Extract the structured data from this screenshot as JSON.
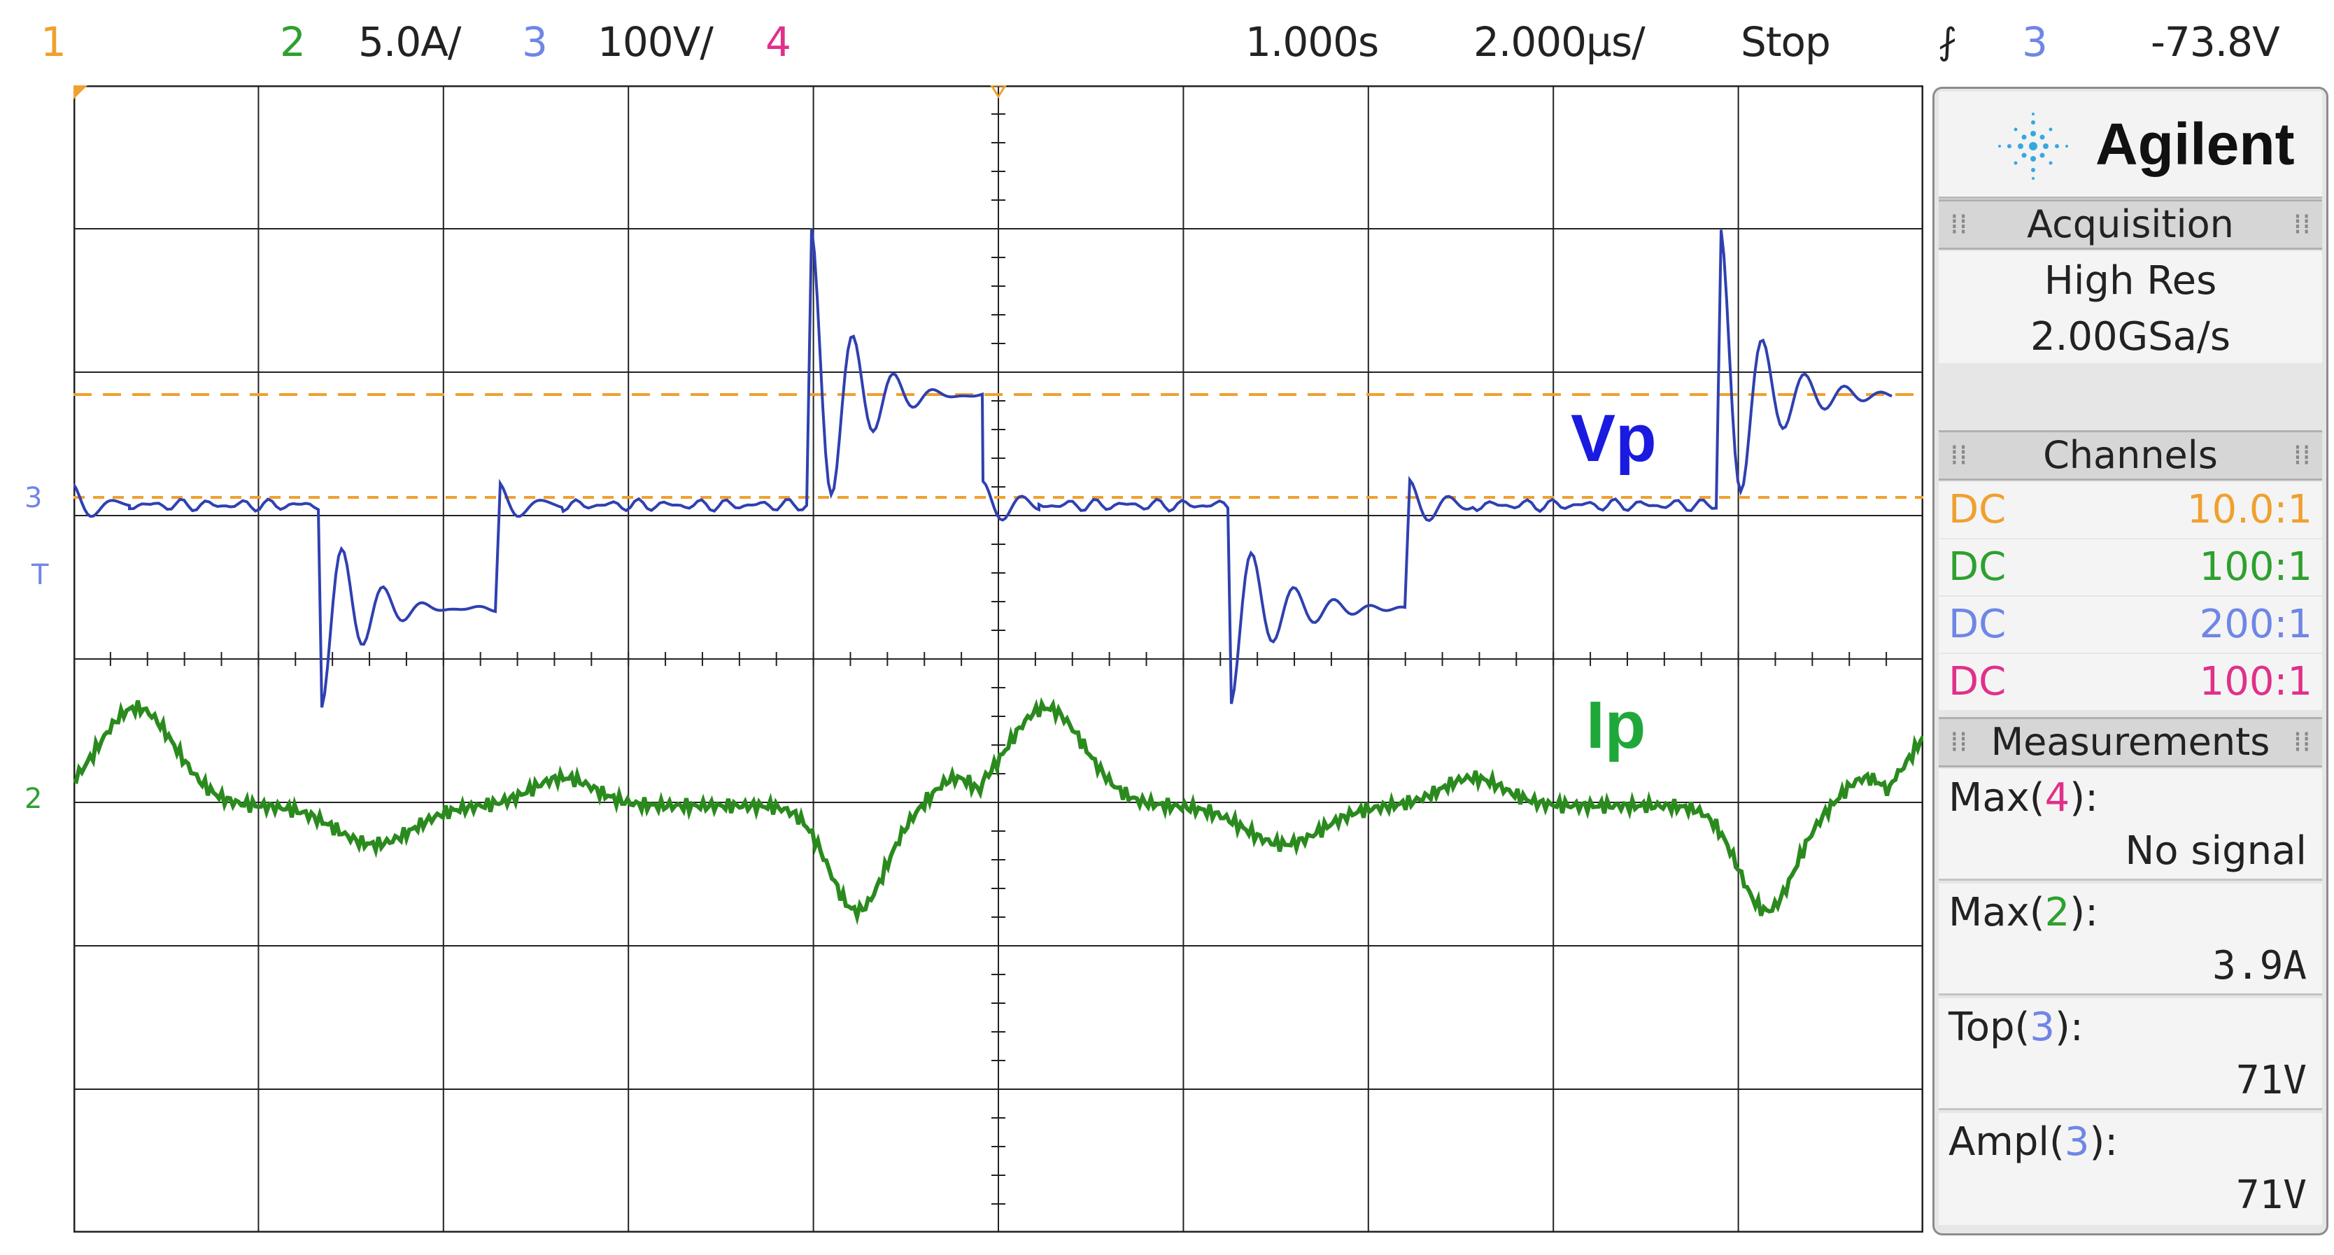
{
  "header": {
    "ch1_num": "1",
    "ch2_num": "2",
    "ch2_scale": "5.0A/",
    "ch3_num": "3",
    "ch3_scale": "100V/",
    "ch4_num": "4",
    "time_delay": "1.000s",
    "time_scale": "2.000µs/",
    "run_state": "Stop",
    "trigger_icon": "⨏",
    "trigger_source": "3",
    "trigger_level": "-73.8V"
  },
  "screen": {
    "markers": {
      "ch3_ground": "3",
      "ch2_ground": "2",
      "trigger_T": "T"
    },
    "trace_labels": {
      "vp": "Vp",
      "ip": "Ip"
    }
  },
  "panel": {
    "brand": "Agilent",
    "acquisition": {
      "title": "Acquisition",
      "mode": "High Res",
      "rate": "2.00GSa/s"
    },
    "channels": {
      "title": "Channels",
      "rows": [
        {
          "coupling": "DC",
          "ratio": "10.0:1",
          "color": "#f0a030"
        },
        {
          "coupling": "DC",
          "ratio": "100:1",
          "color": "#2ea02e"
        },
        {
          "coupling": "DC",
          "ratio": "200:1",
          "color": "#6f86e6"
        },
        {
          "coupling": "DC",
          "ratio": "100:1",
          "color": "#e0308a"
        }
      ]
    },
    "measurements": {
      "title": "Measurements",
      "items": [
        {
          "name": "Max(",
          "ch": "4",
          "close": "):",
          "value": "No signal",
          "ch_color": "#e0308a"
        },
        {
          "name": "Max(",
          "ch": "2",
          "close": "):",
          "value": "3.9A",
          "ch_color": "#2ea02e"
        },
        {
          "name": "Top(",
          "ch": "3",
          "close": "):",
          "value": "71V",
          "ch_color": "#6f86e6"
        },
        {
          "name": "Ampl(",
          "ch": "3",
          "close": "):",
          "value": "71V",
          "ch_color": "#6f86e6"
        }
      ]
    }
  },
  "colors": {
    "ch1": "#f0a030",
    "ch2": "#2ea02e",
    "ch3": "#6f86e6",
    "ch4": "#e0308a",
    "vp_trace": "#2f40b0",
    "ip_trace": "#2a8a1e",
    "vp_label": "#1a1ae0",
    "ip_label": "#1fa83a",
    "grid": "#222222"
  }
}
